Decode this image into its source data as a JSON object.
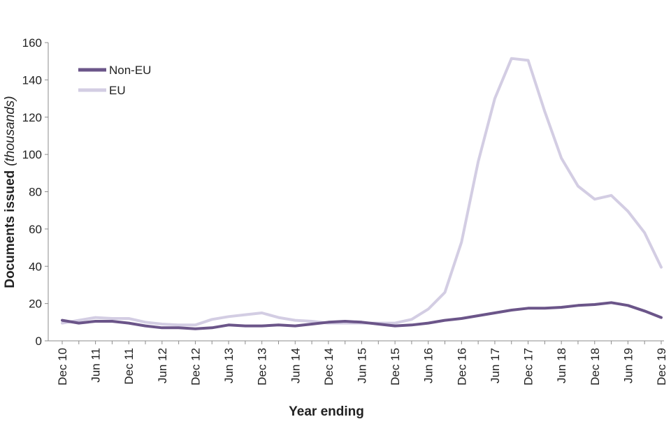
{
  "chart_data": {
    "type": "line",
    "title": "",
    "xlabel": "Year ending",
    "ylabel": "Documents issued",
    "ylabel_note": "(thousands)",
    "ylim": [
      0,
      160
    ],
    "yticks": [
      0,
      20,
      40,
      60,
      80,
      100,
      120,
      140,
      160
    ],
    "grid": false,
    "legend_position": "top-left",
    "x": [
      "Dec 10",
      "Mar 11",
      "Jun 11",
      "Sep 11",
      "Dec 11",
      "Mar 12",
      "Jun 12",
      "Sep 12",
      "Dec 12",
      "Mar 13",
      "Jun 13",
      "Sep 13",
      "Dec 13",
      "Mar 14",
      "Jun 14",
      "Sep 14",
      "Dec 14",
      "Mar 15",
      "Jun 15",
      "Sep 15",
      "Dec 15",
      "Mar 16",
      "Jun 16",
      "Sep 16",
      "Dec 16",
      "Mar 17",
      "Jun 17",
      "Sep 17",
      "Dec 17",
      "Mar 18",
      "Jun 18",
      "Sep 18",
      "Dec 18",
      "Mar 19",
      "Jun 19",
      "Sep 19",
      "Dec 19"
    ],
    "xtick_labels": [
      "Dec 10",
      "Jun 11",
      "Dec 11",
      "Jun 12",
      "Dec 12",
      "Jun 13",
      "Dec 13",
      "Jun 14",
      "Dec 14",
      "Jun 15",
      "Dec 15",
      "Jun 16",
      "Dec 16",
      "Jun 17",
      "Dec 17",
      "Jun 18",
      "Dec 18",
      "Jun 19",
      "Dec 19"
    ],
    "series": [
      {
        "name": "Non-EU",
        "color": "#6b5589",
        "values": [
          11,
          9.5,
          10.5,
          10.5,
          9.5,
          8,
          7,
          7,
          6.5,
          7,
          8.5,
          8,
          8,
          8.5,
          8,
          9,
          10,
          10.5,
          10,
          9,
          8,
          8.5,
          9.5,
          11,
          12,
          13.5,
          15,
          16.5,
          17.5,
          17.5,
          18,
          19,
          19.5,
          20.5,
          19,
          16,
          12.5
        ]
      },
      {
        "name": "EU",
        "color": "#d3cde3",
        "values": [
          9.5,
          11,
          12.5,
          12,
          12,
          10,
          9,
          8.5,
          8.5,
          11.5,
          13,
          14,
          15,
          12.5,
          11,
          10.5,
          9.5,
          9.5,
          9.5,
          9.5,
          9.5,
          11.5,
          17,
          26,
          53,
          96,
          130,
          151.5,
          150.5,
          123,
          98,
          83,
          76,
          78,
          69.5,
          58,
          39.5
        ]
      }
    ]
  }
}
